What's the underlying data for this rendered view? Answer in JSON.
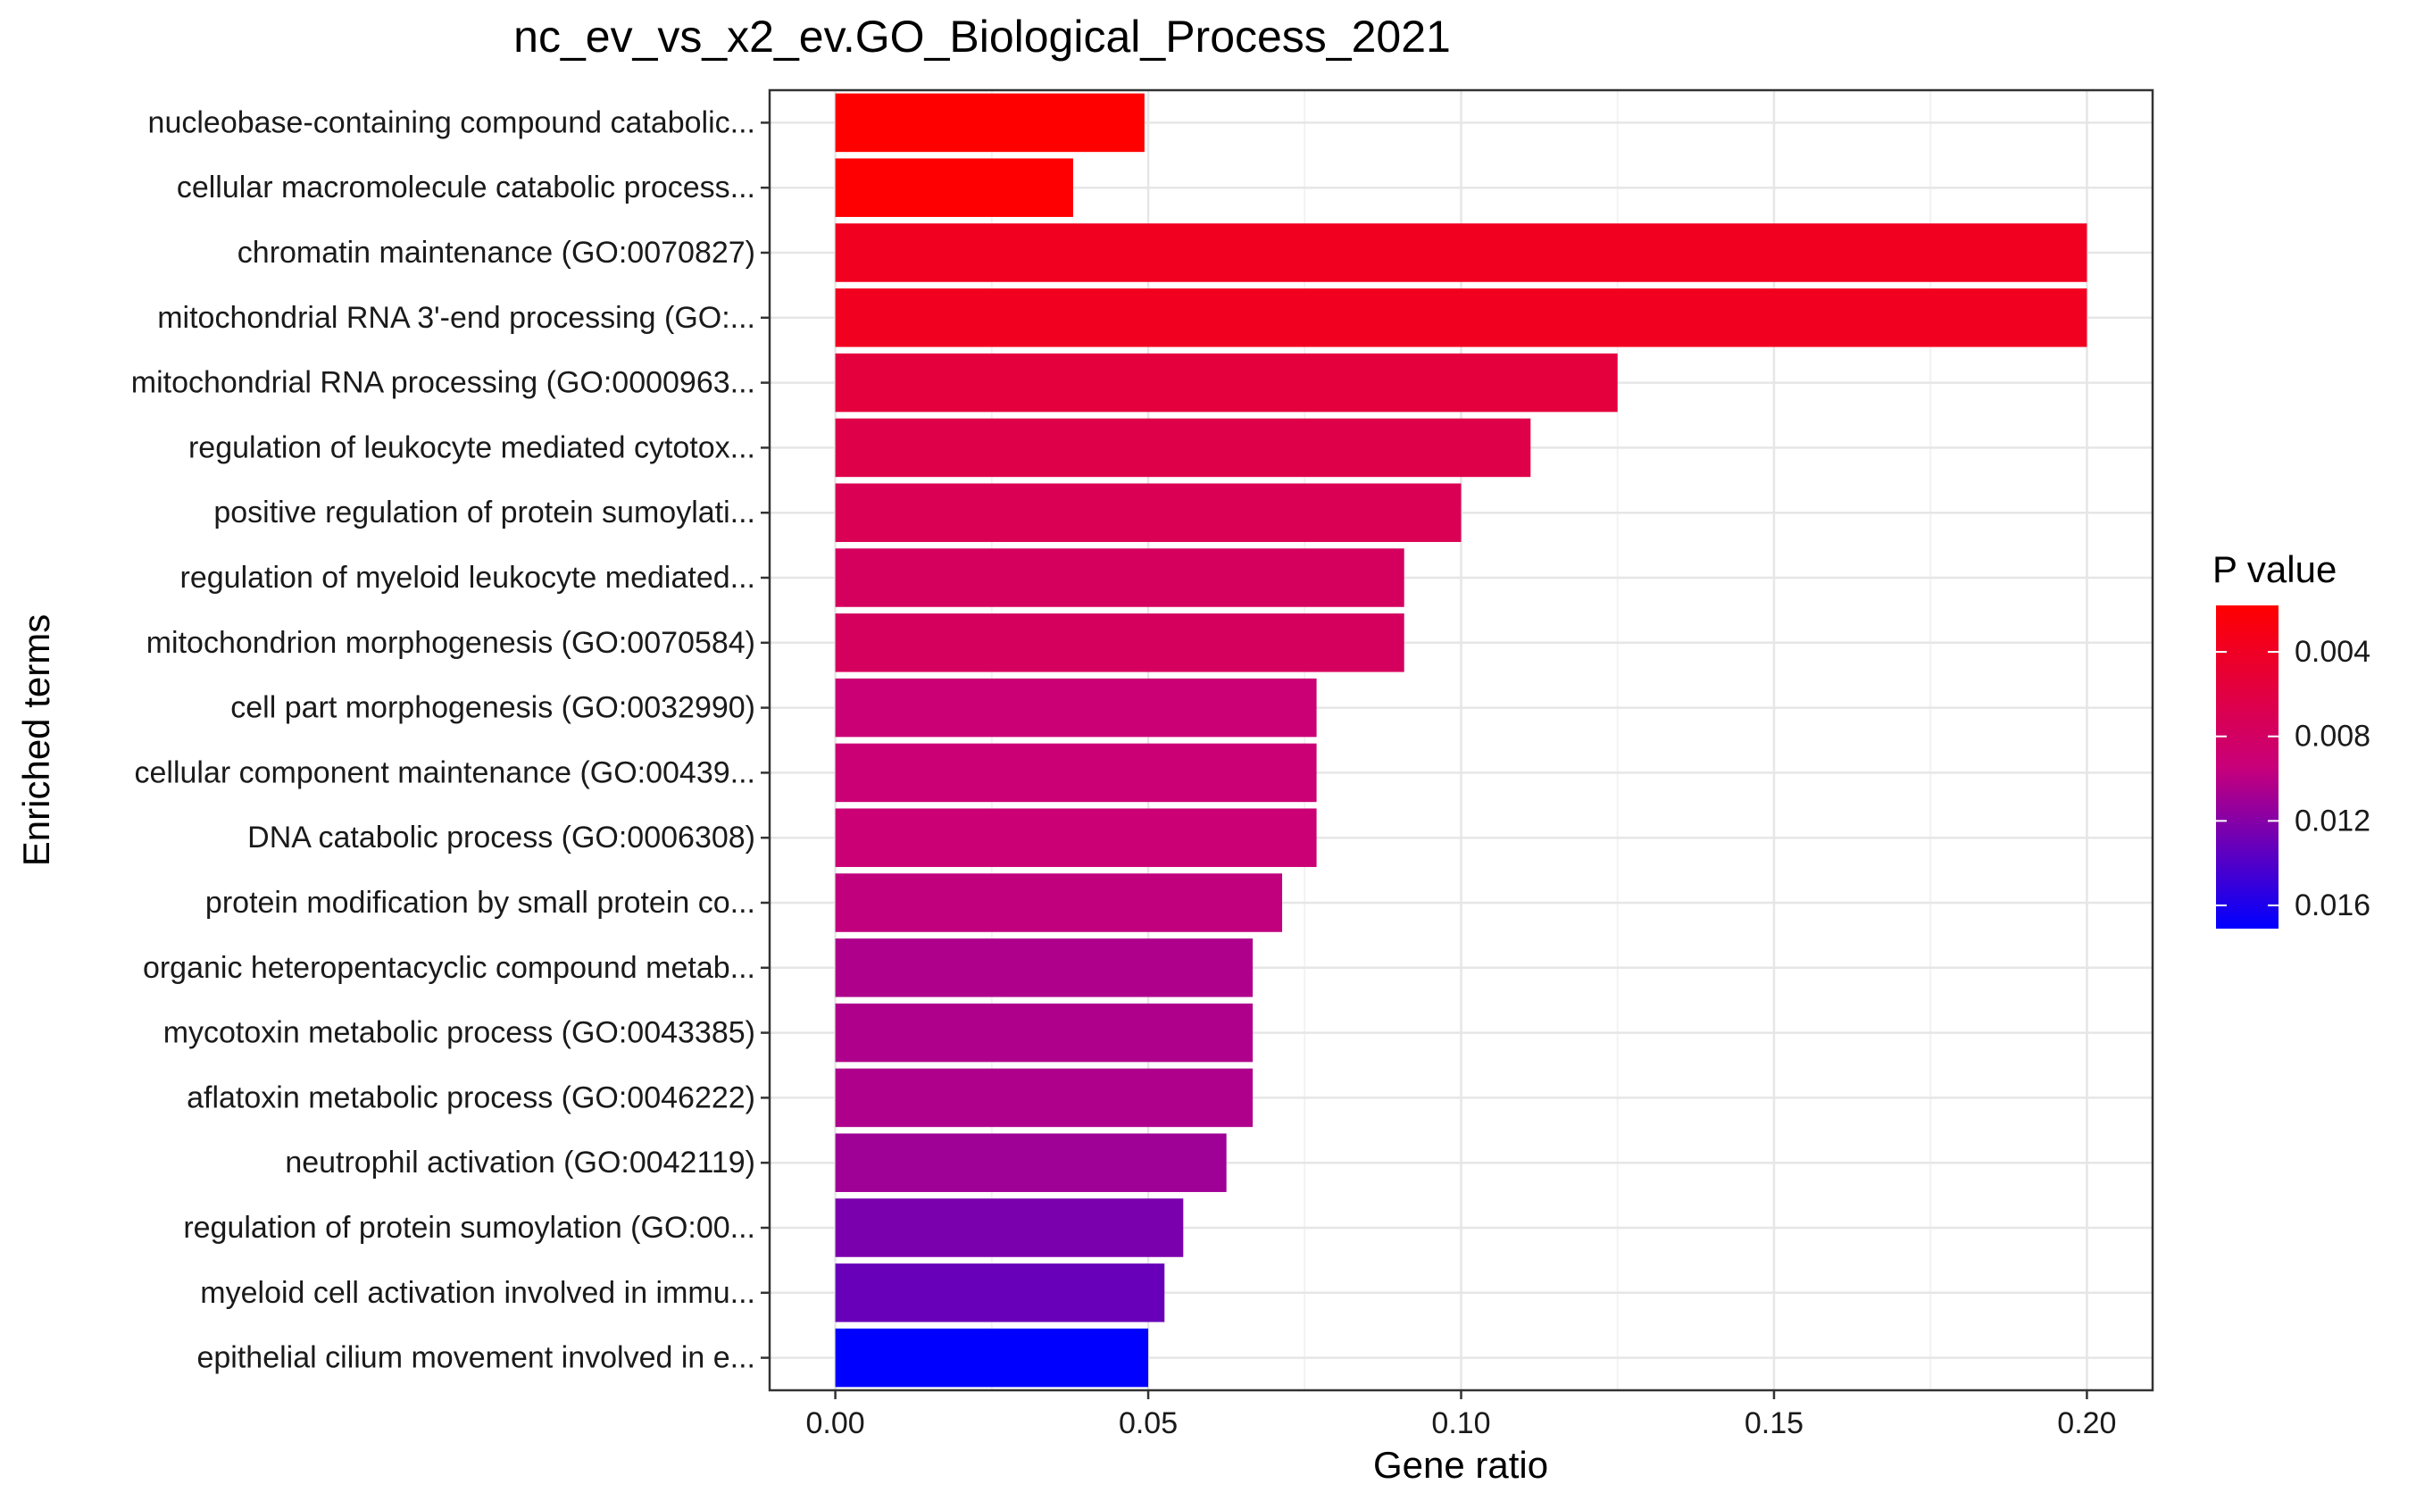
{
  "chart_data": {
    "type": "bar",
    "orientation": "horizontal",
    "title": "nc_ev_vs_x2_ev.GO_Biological_Process_2021",
    "xlabel": "Gene ratio",
    "ylabel": "Enriched terms",
    "xlim": [
      -0.0105,
      0.2105
    ],
    "x_ticks": [
      "0.00",
      "0.05",
      "0.10",
      "0.15",
      "0.20"
    ],
    "x_tick_values": [
      0,
      0.05,
      0.1,
      0.15,
      0.2
    ],
    "grid": true,
    "legend": {
      "title": "P value",
      "position": "right",
      "low_color": "#ff0000",
      "high_color": "#0000ff",
      "range": [
        0.0018,
        0.0171
      ],
      "ticks": [
        "0.004",
        "0.008",
        "0.012",
        "0.016"
      ],
      "tick_values": [
        0.004,
        0.008,
        0.012,
        0.016
      ]
    },
    "categories": [
      "nucleobase-containing compound catabolic...",
      "cellular macromolecule catabolic process...",
      "chromatin maintenance (GO:0070827)",
      "mitochondrial RNA 3'-end processing (GO:...",
      "mitochondrial RNA processing (GO:0000963...",
      "regulation of leukocyte mediated cytotox...",
      "positive regulation of protein sumoylati...",
      "regulation of myeloid leukocyte mediated...",
      "mitochondrion morphogenesis (GO:0070584)",
      "cell part morphogenesis (GO:0032990)",
      "cellular component maintenance (GO:00439...",
      "DNA catabolic process (GO:0006308)",
      "protein modification by small protein co...",
      "organic heteropentacyclic compound metab...",
      "mycotoxin metabolic process (GO:0043385)",
      "aflatoxin metabolic process (GO:0046222)",
      "neutrophil activation (GO:0042119)",
      "regulation of protein sumoylation (GO:00...",
      "myeloid cell activation involved in immu...",
      "epithelial cilium movement involved in e..."
    ],
    "values": [
      0.0494,
      0.038,
      0.2,
      0.2,
      0.125,
      0.1111,
      0.1,
      0.0909,
      0.0909,
      0.0769,
      0.0769,
      0.0769,
      0.0714,
      0.0667,
      0.0667,
      0.0667,
      0.0625,
      0.0556,
      0.0526,
      0.05
    ],
    "p_values": [
      0.0018,
      0.0019,
      0.0038,
      0.0038,
      0.0056,
      0.0064,
      0.007,
      0.0077,
      0.0077,
      0.0091,
      0.0091,
      0.0091,
      0.0097,
      0.0104,
      0.0104,
      0.0104,
      0.011,
      0.0124,
      0.0131,
      0.0171
    ]
  }
}
